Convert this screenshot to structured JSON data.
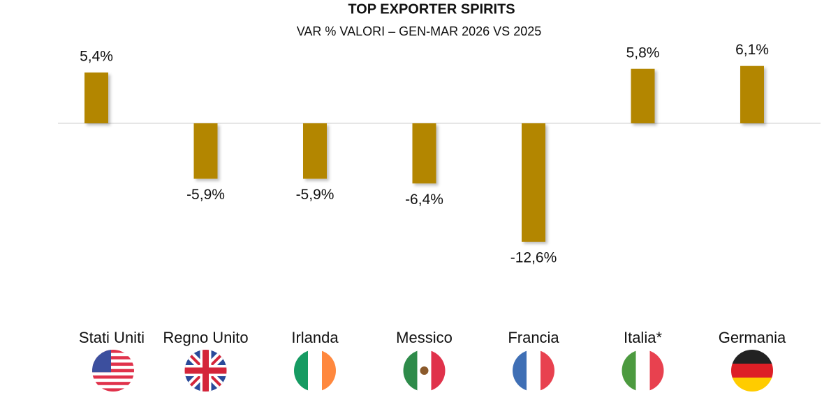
{
  "chart_data": {
    "type": "bar",
    "title": "TOP EXPORTER SPIRITS",
    "subtitle": "VAR % VALORI – GEN-MAR 2026 VS 2025",
    "categories": [
      "Stati Uniti",
      "Regno Unito",
      "Irlanda",
      "Messico",
      "Francia",
      "Italia*",
      "Germania"
    ],
    "values": [
      5.4,
      -5.9,
      -5.9,
      -6.4,
      -12.6,
      5.8,
      6.1
    ],
    "value_labels": [
      "5,4%",
      "-5,9%",
      "-5,9%",
      "-6,4%",
      "-12,6%",
      "5,8%",
      "6,1%"
    ],
    "color": "#b38600"
  }
}
